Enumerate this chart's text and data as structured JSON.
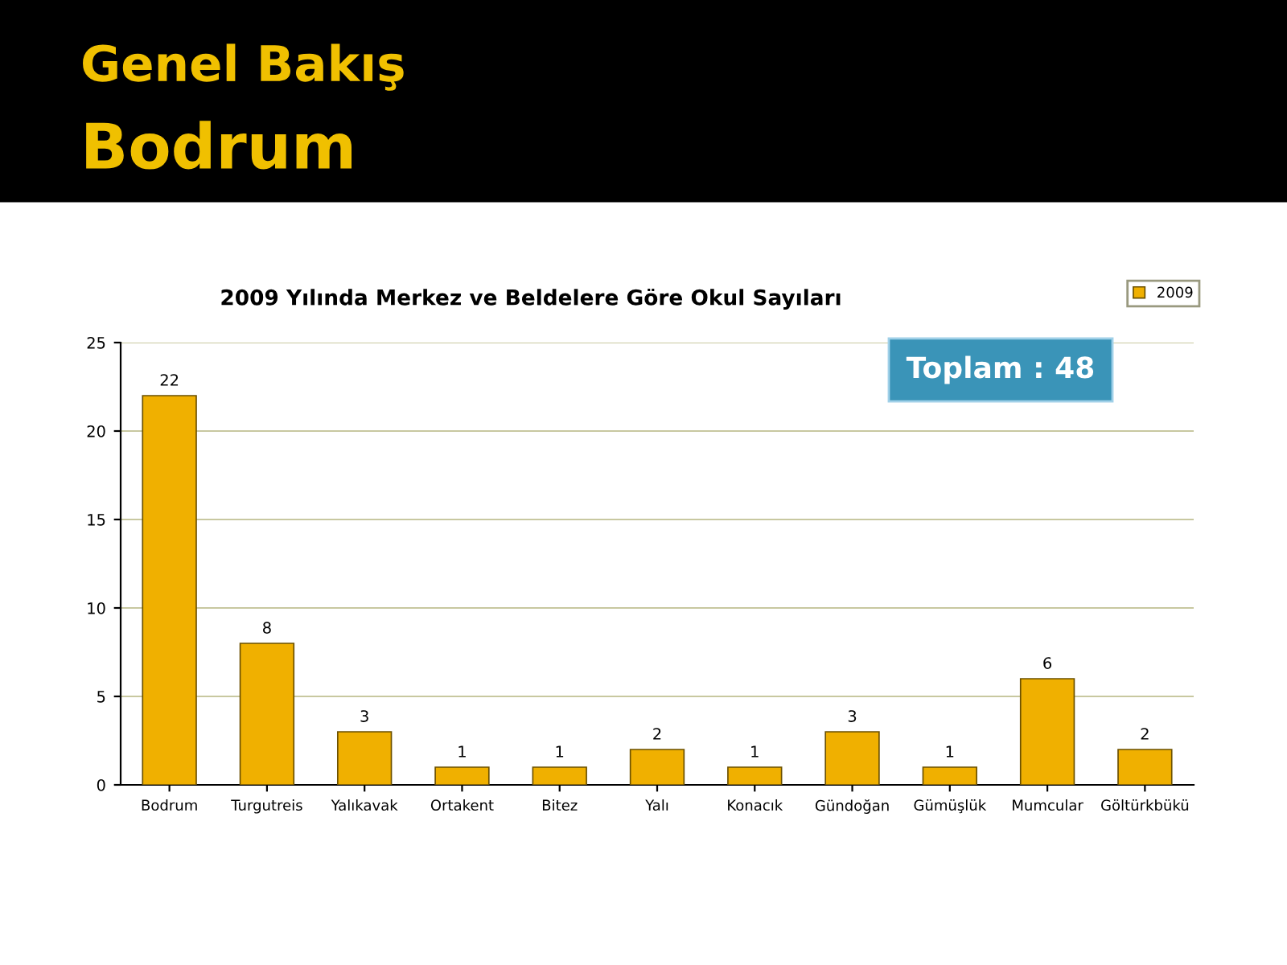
{
  "chart_data": {
    "type": "bar",
    "title": "2009 Yılında Merkez ve Beldelere Göre Okul Sayıları",
    "annotations": [
      "Genel Bakış",
      "Bodrum",
      "Toplam : 48"
    ],
    "categories": [
      "Bodrum",
      "Turgutreis",
      "Yalıkavak",
      "Ortakent",
      "Bitez",
      "Yalı",
      "Konacık",
      "Gündoğan",
      "Gümüşlük",
      "Mumcular",
      "Göltürkbükü"
    ],
    "series": [
      {
        "name": "2009",
        "color": "#f0b000",
        "values": [
          22,
          8,
          3,
          1,
          1,
          2,
          1,
          3,
          1,
          6,
          2
        ]
      }
    ],
    "ylim": [
      0,
      25
    ],
    "yticks": [
      0,
      5,
      10,
      15,
      20,
      25
    ],
    "grid": "y",
    "legend": "top right",
    "data_labels": true
  }
}
